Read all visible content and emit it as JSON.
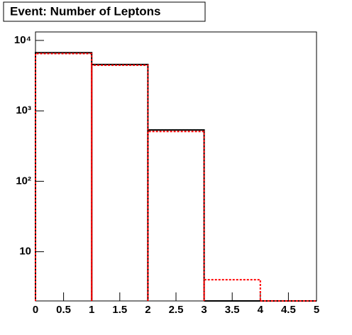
{
  "chart_data": {
    "type": "histogram",
    "title": "Event: Number of Leptons",
    "bins": [
      0,
      1,
      2,
      3,
      4,
      5
    ],
    "series": [
      {
        "color": "#000000",
        "values": [
          6700,
          4550,
          535,
          0,
          0
        ]
      },
      {
        "color": "#ff0000",
        "values": [
          6500,
          4450,
          510,
          4,
          0
        ]
      }
    ],
    "xlim": [
      0,
      5
    ],
    "xticks": [
      0,
      0.5,
      1,
      1.5,
      2,
      2.5,
      3,
      3.5,
      4,
      4.5,
      5
    ],
    "ylim": [
      2,
      13200
    ],
    "log_y": true,
    "yticks": [
      10,
      {
        "value": 100,
        "label": "10²"
      },
      {
        "value": 1000,
        "label": "10³"
      },
      {
        "value": 10000,
        "label": "10⁴"
      }
    ]
  }
}
